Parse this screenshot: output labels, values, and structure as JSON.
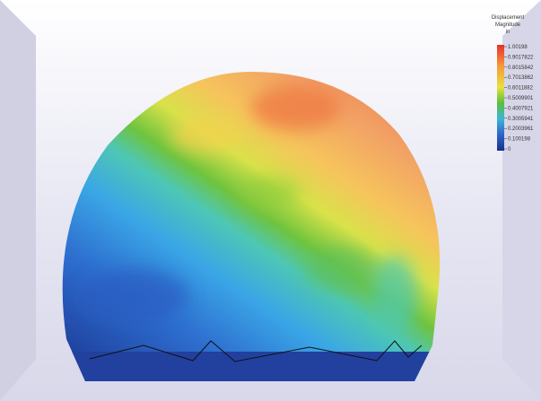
{
  "legend": {
    "title": "Displacement",
    "subtitle": "Magnitude",
    "unit": "in",
    "labels": [
      "1.00198",
      "0.9017822",
      "0.8015842",
      "0.7013862",
      "0.6011882",
      "0.5009901",
      "0.4007921",
      "0.3005941",
      "0.2003961",
      "0.100198",
      "0"
    ]
  }
}
